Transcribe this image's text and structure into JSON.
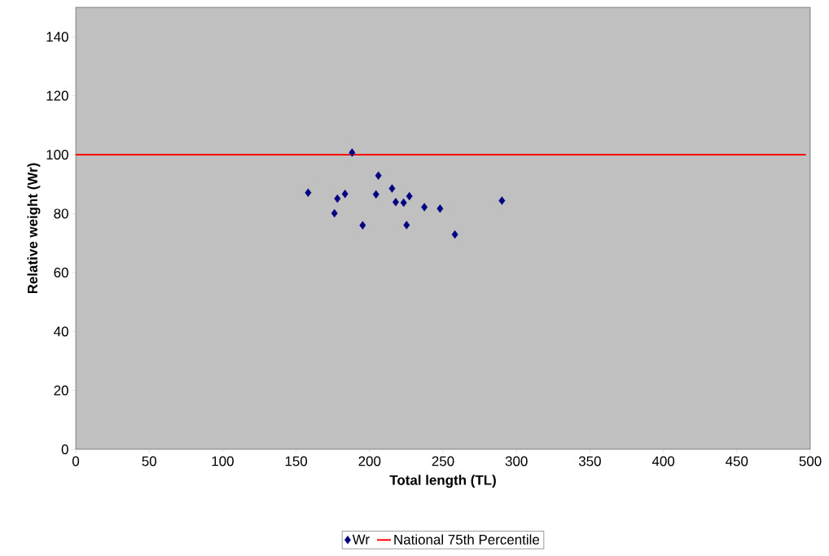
{
  "chart_data": {
    "type": "scatter",
    "xlabel": "Total length (TL)",
    "ylabel": "Relative weight (Wr)",
    "xlim": [
      0,
      500
    ],
    "ylim": [
      0,
      150
    ],
    "xticks": [
      0,
      50,
      100,
      150,
      200,
      250,
      300,
      350,
      400,
      450,
      500
    ],
    "yticks": [
      0,
      20,
      40,
      60,
      80,
      100,
      120,
      140
    ],
    "legend": "bottom",
    "series": [
      {
        "name": "Wr",
        "marker": "diamond",
        "color": "#000080",
        "x": [
          158.2,
          188.1,
          176.1,
          178.1,
          183.3,
          195.3,
          204.4,
          206.0,
          215.3,
          217.8,
          223.2,
          227.1,
          225.2,
          237.3,
          248.0,
          258.1,
          290.1
        ],
        "values": [
          87.1,
          100.7,
          80.1,
          85.1,
          86.7,
          76.0,
          86.5,
          92.9,
          88.5,
          83.9,
          83.7,
          85.9,
          76.1,
          82.2,
          81.7,
          72.9,
          84.4
        ]
      },
      {
        "name": "National 75th Percentile",
        "type": "line",
        "marker": "none",
        "line_style": "solid",
        "color": "#ff0000",
        "x": [
          0,
          497
        ],
        "values": [
          100,
          100
        ]
      }
    ]
  }
}
